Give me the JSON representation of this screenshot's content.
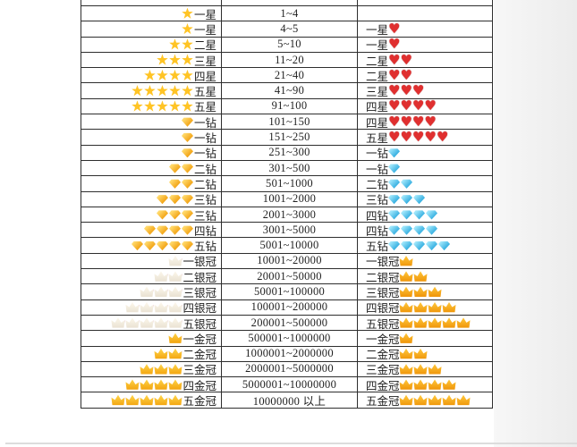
{
  "page": {
    "background": "#ffffff",
    "right_band_color": "#efefef",
    "table_border_color": "#2e2e2e",
    "text_color": "#1f1f1f"
  },
  "icons": {
    "gold-star": {
      "cls": "i-star",
      "color": "#ffc425"
    },
    "red-heart": {
      "cls": "i-heart",
      "glyph": "♥",
      "color": "#e02f2f"
    },
    "gold-diamond": {
      "cls": "i-gem i-gem-gold",
      "color": "#f5a623"
    },
    "blue-diamond": {
      "cls": "i-gem i-gem-blue",
      "color": "#35b5e5"
    },
    "silver-crown": {
      "cls": "i-crown i-crown-silver",
      "color": "#efe8da"
    },
    "gold-crown": {
      "cls": "i-crown i-crown-gold",
      "color": "#ffb612"
    },
    "blue-crown": {
      "cls": "i-crown i-crown-blue i-crown-goldr",
      "color": "#2fa8e1"
    },
    "gold-crown-right": {
      "cls": "i-crown i-crown-goldr",
      "color": "#f39c12"
    }
  },
  "table": {
    "rows": [
      {
        "left": {
          "icon": "gold-star",
          "count": 1,
          "label": "一星"
        },
        "range": "1~4",
        "right": {
          "label": "",
          "icon": "",
          "count": 0
        }
      },
      {
        "left": {
          "icon": "gold-star",
          "count": 1,
          "label": "一星"
        },
        "range": "4~5",
        "right": {
          "label": "一星",
          "icon": "red-heart",
          "count": 1
        }
      },
      {
        "left": {
          "icon": "gold-star",
          "count": 2,
          "label": "二星"
        },
        "range": "5~10",
        "right": {
          "label": "一星",
          "icon": "red-heart",
          "count": 1
        }
      },
      {
        "left": {
          "icon": "gold-star",
          "count": 3,
          "label": "三星"
        },
        "range": "11~20",
        "right": {
          "label": "二星",
          "icon": "red-heart",
          "count": 2
        }
      },
      {
        "left": {
          "icon": "gold-star",
          "count": 4,
          "label": "四星"
        },
        "range": "21~40",
        "right": {
          "label": "二星",
          "icon": "red-heart",
          "count": 2
        }
      },
      {
        "left": {
          "icon": "gold-star",
          "count": 5,
          "label": "五星"
        },
        "range": "41~90",
        "right": {
          "label": "三星",
          "icon": "red-heart",
          "count": 3
        }
      },
      {
        "left": {
          "icon": "gold-star",
          "count": 5,
          "label": "五星"
        },
        "range": "91~100",
        "right": {
          "label": "四星",
          "icon": "red-heart",
          "count": 4
        }
      },
      {
        "left": {
          "icon": "gold-diamond",
          "count": 1,
          "label": "一钻"
        },
        "range": "101~150",
        "right": {
          "label": "四星",
          "icon": "red-heart",
          "count": 4
        }
      },
      {
        "left": {
          "icon": "gold-diamond",
          "count": 1,
          "label": "一钻"
        },
        "range": "151~250",
        "right": {
          "label": "五星",
          "icon": "red-heart",
          "count": 5
        }
      },
      {
        "left": {
          "icon": "gold-diamond",
          "count": 1,
          "label": "一钻"
        },
        "range": "251~300",
        "right": {
          "label": "一钻",
          "icon": "blue-diamond",
          "count": 1
        }
      },
      {
        "left": {
          "icon": "gold-diamond",
          "count": 2,
          "label": "二钻"
        },
        "range": "301~500",
        "right": {
          "label": "一钻",
          "icon": "blue-diamond",
          "count": 1
        }
      },
      {
        "left": {
          "icon": "gold-diamond",
          "count": 2,
          "label": "二钻"
        },
        "range": "501~1000",
        "right": {
          "label": "二钻",
          "icon": "blue-diamond",
          "count": 2
        }
      },
      {
        "left": {
          "icon": "gold-diamond",
          "count": 3,
          "label": "三钻"
        },
        "range": "1001~2000",
        "right": {
          "label": "三钻",
          "icon": "blue-diamond",
          "count": 3
        }
      },
      {
        "left": {
          "icon": "gold-diamond",
          "count": 3,
          "label": "三钻"
        },
        "range": "2001~3000",
        "right": {
          "label": "四钻",
          "icon": "blue-diamond",
          "count": 4
        }
      },
      {
        "left": {
          "icon": "gold-diamond",
          "count": 4,
          "label": "四钻"
        },
        "range": "3001~5000",
        "right": {
          "label": "四钻",
          "icon": "blue-diamond",
          "count": 4
        }
      },
      {
        "left": {
          "icon": "gold-diamond",
          "count": 5,
          "label": "五钻"
        },
        "range": "5001~10000",
        "right": {
          "label": "五钻",
          "icon": "blue-diamond",
          "count": 5
        }
      },
      {
        "left": {
          "icon": "silver-crown",
          "count": 1,
          "label": "一银冠"
        },
        "range": "10001~20000",
        "right": {
          "label": "一银冠",
          "icon": "blue-crown",
          "count": 1
        }
      },
      {
        "left": {
          "icon": "silver-crown",
          "count": 2,
          "label": "二银冠"
        },
        "range": "20001~50000",
        "right": {
          "label": "二银冠",
          "icon": "blue-crown",
          "count": 2
        }
      },
      {
        "left": {
          "icon": "silver-crown",
          "count": 3,
          "label": "三银冠"
        },
        "range": "50001~100000",
        "right": {
          "label": "三银冠",
          "icon": "blue-crown",
          "count": 3
        }
      },
      {
        "left": {
          "icon": "silver-crown",
          "count": 4,
          "label": "四银冠"
        },
        "range": "100001~200000",
        "right": {
          "label": "四银冠",
          "icon": "blue-crown",
          "count": 4
        }
      },
      {
        "left": {
          "icon": "silver-crown",
          "count": 5,
          "label": "五银冠"
        },
        "range": "200001~500000",
        "right": {
          "label": "五银冠",
          "icon": "blue-crown",
          "count": 5
        }
      },
      {
        "left": {
          "icon": "gold-crown",
          "count": 1,
          "label": "一金冠"
        },
        "range": "500001~1000000",
        "right": {
          "label": "一金冠",
          "icon": "gold-crown-right",
          "count": 1
        }
      },
      {
        "left": {
          "icon": "gold-crown",
          "count": 2,
          "label": "二金冠"
        },
        "range": "1000001~2000000",
        "right": {
          "label": "二金冠",
          "icon": "gold-crown-right",
          "count": 2
        }
      },
      {
        "left": {
          "icon": "gold-crown",
          "count": 3,
          "label": "三金冠"
        },
        "range": "2000001~5000000",
        "right": {
          "label": "三金冠",
          "icon": "gold-crown-right",
          "count": 3
        }
      },
      {
        "left": {
          "icon": "gold-crown",
          "count": 4,
          "label": "四金冠"
        },
        "range": "5000001~10000000",
        "right": {
          "label": "四金冠",
          "icon": "gold-crown-right",
          "count": 4
        }
      },
      {
        "left": {
          "icon": "gold-crown",
          "count": 5,
          "label": "五金冠"
        },
        "range": "10000000 以上",
        "right": {
          "label": "五金冠",
          "icon": "gold-crown-right",
          "count": 5
        }
      }
    ]
  }
}
